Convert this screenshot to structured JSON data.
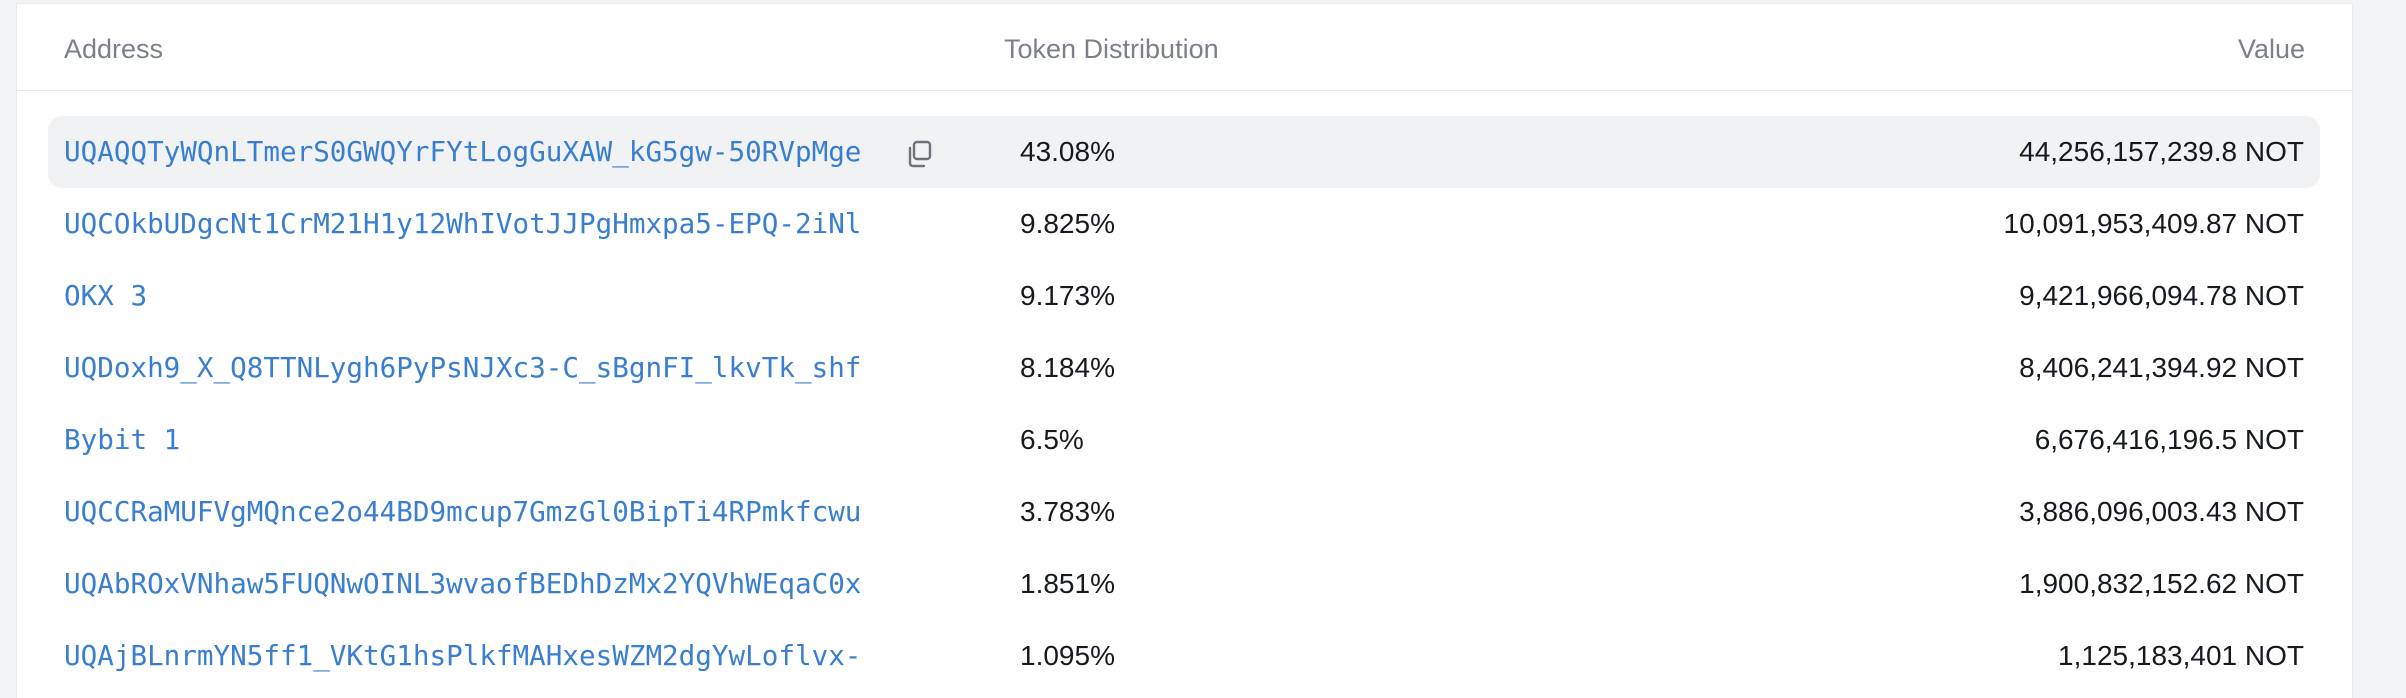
{
  "table": {
    "headers": {
      "address": "Address",
      "distribution": "Token Distribution",
      "value": "Value"
    },
    "rows": [
      {
        "address": "UQAQQTyWQnLTmerS0GWQYrFYtLogGuXAW_kG5gw-50RVpMge",
        "distribution": "43.08%",
        "value": "44,256,157,239.8 NOT",
        "highlighted": true
      },
      {
        "address": "UQCOkbUDgcNt1CrM21H1y12WhIVotJJPgHmxpa5-EPQ-2iNl",
        "distribution": "9.825%",
        "value": "10,091,953,409.87 NOT"
      },
      {
        "address": "OKX 3",
        "distribution": "9.173%",
        "value": "9,421,966,094.78 NOT"
      },
      {
        "address": "UQDoxh9_X_Q8TTNLygh6PyPsNJXc3-C_sBgnFI_lkvTk_shf",
        "distribution": "8.184%",
        "value": "8,406,241,394.92 NOT"
      },
      {
        "address": "Bybit 1",
        "distribution": "6.5%",
        "value": "6,676,416,196.5 NOT"
      },
      {
        "address": "UQCCRaMUFVgMQnce2o44BD9mcup7GmzGl0BipTi4RPmkfcwu",
        "distribution": "3.783%",
        "value": "3,886,096,003.43 NOT"
      },
      {
        "address": "UQAbROxVNhaw5FUQNwOINL3wvaofBEDhDzMx2YQVhWEqaC0x",
        "distribution": "1.851%",
        "value": "1,900,832,152.62 NOT"
      },
      {
        "address": "UQAjBLnrmYN5ff1_VKtG1hsPlkfMAHxesWZM2dgYwLoflvx-",
        "distribution": "1.095%",
        "value": "1,125,183,401 NOT"
      }
    ]
  },
  "icons": {
    "copy": "copy-icon"
  },
  "colors": {
    "link": "#3a7ed1",
    "header_text": "#7b8089",
    "row_highlight": "#f1f2f4"
  }
}
